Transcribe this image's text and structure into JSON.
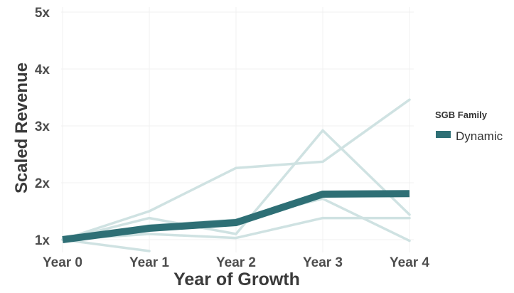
{
  "chart_data": {
    "type": "line",
    "xlabel": "Year of Growth",
    "ylabel": "Scaled Revenue",
    "categories": [
      "Year 0",
      "Year 1",
      "Year 2",
      "Year 3",
      "Year 4"
    ],
    "y_ticks": [
      1,
      2,
      3,
      4,
      5
    ],
    "y_tick_labels": [
      "1x",
      "2x",
      "3x",
      "4x",
      "5x"
    ],
    "ylim": [
      0.85,
      5
    ],
    "grid": true,
    "legend": {
      "title": "SGB Family",
      "position": "right"
    },
    "series": [
      {
        "name": "Dynamic",
        "role": "main",
        "values": [
          1.0,
          1.2,
          1.3,
          1.8,
          1.81
        ]
      }
    ],
    "background_series": [
      {
        "values": [
          1.0,
          1.5,
          2.26,
          2.37,
          3.46
        ]
      },
      {
        "values": [
          1.0,
          1.38,
          1.1,
          2.92,
          1.44
        ]
      },
      {
        "values": [
          1.0,
          1.25,
          1.35,
          1.72,
          0.98
        ]
      },
      {
        "values": [
          1.0,
          1.1,
          1.03,
          1.38,
          1.38
        ]
      },
      {
        "values": [
          1.0,
          0.8
        ]
      }
    ],
    "colors": {
      "main": "#2e6f75",
      "background": "#cfe2e2",
      "grid": "#f0f0f0"
    }
  }
}
